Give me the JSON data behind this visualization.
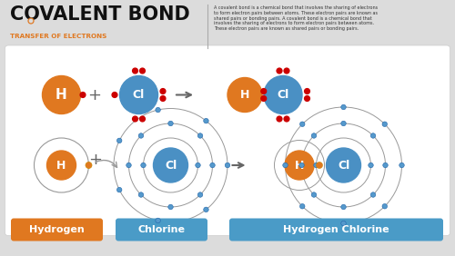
{
  "title_main": "COVALENT BOND",
  "title_sub": "TRANSFER OF ELECTRONS",
  "description": "A covalent bond is a chemical bond that involves the sharing of electrons\nto form electron pairs between atoms. These electron pairs are known as\nshared pairs or bonding pairs. A covalent bond is a chemical bond that\ninvolves the sharing of electrons to form electron pairs between atoms.\nThese electron pairs are known as shared pairs or bonding pairs.",
  "bg_color": "#dcdcdc",
  "orange_color": "#E07820",
  "blue_color": "#4a90c4",
  "label_hydrogen": "Hydrogen",
  "label_chlorine": "Chlorine",
  "label_hcl": "Hydrogen Chlorine",
  "label_bg_orange": "#E07820",
  "label_bg_blue": "#4a9bc7",
  "label_text_color": "#ffffff",
  "red_dot_color": "#cc0000",
  "orbit_color": "#888888",
  "title_color": "#111111",
  "sep_color": "#aaaaaa",
  "desc_color": "#333333",
  "plus_color": "#666666",
  "arrow_color": "#666666"
}
